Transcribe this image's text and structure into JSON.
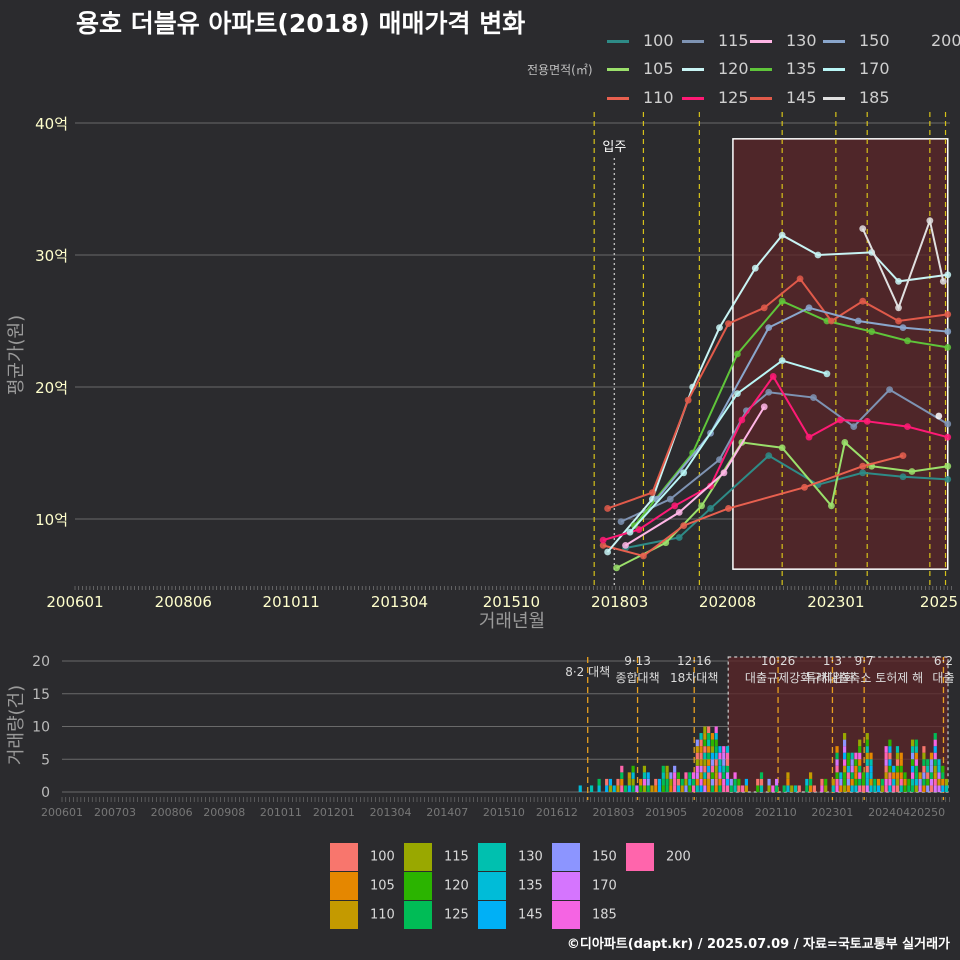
{
  "title": "용호 더블유 아파트(2018) 매매가격 변화",
  "legend_title": "전용면적(㎡)",
  "footer": "©디아파트(dapt.kr) / 2025.07.09 / 자료=국토교통부 실거래가",
  "chart_data": [
    {
      "type": "line",
      "ylabel": "평균가(원)",
      "xlabel": "거래년월",
      "x_ticks": [
        "200601",
        "200806",
        "201011",
        "201304",
        "201510",
        "201803",
        "202008",
        "202301",
        "2025"
      ],
      "y_ticks": [
        "10억",
        "20억",
        "30억",
        "40억"
      ],
      "ylim": [
        4.5,
        41
      ],
      "xlim": [
        "2006-01",
        "2025-07"
      ],
      "event_label": "입주",
      "series": [
        {
          "name": "100",
          "color": "#2e8b87",
          "values": [
            [
              2018.3,
              7.8
            ],
            [
              2019.5,
              8.6
            ],
            [
              2020.2,
              10.8
            ],
            [
              2021.5,
              14.8
            ],
            [
              2022.6,
              12.6
            ],
            [
              2023.6,
              13.5
            ],
            [
              2024.5,
              13.2
            ],
            [
              2025.5,
              13.0
            ]
          ]
        },
        {
          "name": "105",
          "color": "#9be06b",
          "values": [
            [
              2018.1,
              6.3
            ],
            [
              2019.2,
              8.2
            ],
            [
              2020.0,
              11.0
            ],
            [
              2020.9,
              15.8
            ],
            [
              2021.8,
              15.4
            ],
            [
              2022.9,
              11.0
            ],
            [
              2023.2,
              15.8
            ],
            [
              2023.8,
              14.0
            ],
            [
              2024.7,
              13.6
            ],
            [
              2025.5,
              14.0
            ]
          ]
        },
        {
          "name": "110",
          "color": "#e8604f",
          "values": [
            [
              2017.8,
              8.0
            ],
            [
              2018.7,
              7.2
            ],
            [
              2019.6,
              9.5
            ],
            [
              2020.6,
              10.8
            ],
            [
              2022.3,
              12.4
            ],
            [
              2023.6,
              14.0
            ],
            [
              2024.5,
              14.8
            ]
          ]
        },
        {
          "name": "115",
          "color": "#7e93b3",
          "values": [
            [
              2018.2,
              9.8
            ],
            [
              2019.3,
              11.5
            ],
            [
              2020.4,
              14.5
            ],
            [
              2021.0,
              18.2
            ],
            [
              2021.5,
              19.6
            ],
            [
              2022.5,
              19.2
            ],
            [
              2023.4,
              17.0
            ],
            [
              2024.2,
              19.8
            ],
            [
              2025.5,
              17.2
            ]
          ]
        },
        {
          "name": "120",
          "color": "#c8f4f4",
          "values": [
            [
              2017.9,
              7.5
            ],
            [
              2018.9,
              11.5
            ],
            [
              2019.8,
              20.0
            ],
            [
              2020.4,
              24.5
            ],
            [
              2021.2,
              29.0
            ],
            [
              2021.8,
              31.5
            ],
            [
              2022.6,
              30.0
            ],
            [
              2023.8,
              30.2
            ],
            [
              2024.4,
              28.0
            ],
            [
              2025.5,
              28.5
            ]
          ]
        },
        {
          "name": "125",
          "color": "#ff1a75",
          "values": [
            [
              2017.8,
              8.4
            ],
            [
              2018.6,
              9.2
            ],
            [
              2019.4,
              11.0
            ],
            [
              2020.2,
              12.5
            ],
            [
              2020.9,
              17.5
            ],
            [
              2021.6,
              20.8
            ],
            [
              2022.4,
              16.2
            ],
            [
              2023.1,
              17.5
            ],
            [
              2023.7,
              17.4
            ],
            [
              2024.6,
              17.0
            ],
            [
              2025.5,
              16.2
            ]
          ]
        },
        {
          "name": "130",
          "color": "#ffb6e6",
          "values": [
            [
              2018.3,
              8.0
            ],
            [
              2019.5,
              10.5
            ],
            [
              2020.5,
              13.5
            ],
            [
              2021.4,
              18.5
            ]
          ]
        },
        {
          "name": "135",
          "color": "#5fc53a",
          "values": [
            [
              2018.5,
              9.5
            ],
            [
              2019.8,
              15.0
            ],
            [
              2020.8,
              22.5
            ],
            [
              2021.8,
              26.5
            ],
            [
              2022.8,
              25.0
            ],
            [
              2023.8,
              24.2
            ],
            [
              2024.6,
              23.5
            ],
            [
              2025.5,
              23.0
            ]
          ]
        },
        {
          "name": "145",
          "color": "#e05a4a",
          "values": [
            [
              2017.9,
              10.8
            ],
            [
              2018.9,
              12.0
            ],
            [
              2019.7,
              19.0
            ],
            [
              2020.6,
              24.8
            ],
            [
              2021.4,
              26.0
            ],
            [
              2022.2,
              28.2
            ],
            [
              2022.9,
              25.0
            ],
            [
              2023.6,
              26.5
            ],
            [
              2024.4,
              25.0
            ],
            [
              2025.5,
              25.5
            ]
          ]
        },
        {
          "name": "150",
          "color": "#8aa6cc",
          "values": [
            [
              2019.0,
              11.5
            ],
            [
              2020.2,
              16.5
            ],
            [
              2021.5,
              24.5
            ],
            [
              2022.4,
              26.0
            ],
            [
              2023.5,
              25.0
            ],
            [
              2024.5,
              24.5
            ],
            [
              2025.5,
              24.2
            ]
          ]
        },
        {
          "name": "170",
          "color": "#b9f6f6",
          "values": [
            [
              2018.4,
              9.0
            ],
            [
              2019.6,
              13.5
            ],
            [
              2020.8,
              19.5
            ],
            [
              2021.8,
              22.0
            ],
            [
              2022.8,
              21.0
            ]
          ]
        },
        {
          "name": "185",
          "color": "#e0e0e0",
          "values": [
            [
              2023.6,
              32.0
            ],
            [
              2024.4,
              26.0
            ],
            [
              2025.1,
              32.6
            ],
            [
              2025.4,
              28.0
            ]
          ]
        },
        {
          "name": "200",
          "color": "#ffffff",
          "values": [
            [
              2025.3,
              17.8
            ]
          ]
        }
      ],
      "policy_lines": [
        2017.6,
        2018.7,
        2019.95,
        2021.8,
        2023.0,
        2023.7,
        2025.1,
        2025.45
      ],
      "highlight_range": [
        2020.7,
        2025.5,
        6.2,
        38.8
      ]
    },
    {
      "type": "bar",
      "ylabel": "거래량(건)",
      "x_ticks": [
        "200601",
        "200703",
        "200806",
        "200908",
        "201011",
        "201201",
        "201304",
        "201407",
        "201510",
        "201612",
        "201803",
        "201905",
        "202008",
        "202110",
        "202301",
        "202404",
        "20250"
      ],
      "y_ticks": [
        "0",
        "5",
        "10",
        "15",
        "20"
      ],
      "ylim": [
        0,
        21
      ],
      "policy_labels": [
        {
          "x": 2017.6,
          "lines": [
            "8·2 대책"
          ]
        },
        {
          "x": 2018.7,
          "lines": [
            "9·13",
            "종합대책"
          ]
        },
        {
          "x": 2019.95,
          "lines": [
            "12·16",
            "18차대책"
          ]
        },
        {
          "x": 2021.8,
          "lines": [
            "10·26",
            "대출규제강화"
          ]
        },
        {
          "x": 2023.0,
          "lines": [
            "1·3",
            "규제완화"
          ]
        },
        {
          "x": 2023.7,
          "lines": [
            "9·7",
            "특례대출축소 토허제 해"
          ]
        },
        {
          "x": 2025.45,
          "lines": [
            "6·2",
            "대출"
          ]
        }
      ],
      "legend": [
        {
          "name": "100",
          "color": "#f8766d"
        },
        {
          "name": "105",
          "color": "#e58700"
        },
        {
          "name": "110",
          "color": "#c49a00"
        },
        {
          "name": "115",
          "color": "#99a800"
        },
        {
          "name": "120",
          "color": "#2bb400"
        },
        {
          "name": "125",
          "color": "#00bc56"
        },
        {
          "name": "130",
          "color": "#00c0af"
        },
        {
          "name": "135",
          "color": "#00bcd8"
        },
        {
          "name": "145",
          "color": "#00b0f6"
        },
        {
          "name": "150",
          "color": "#8c95ff"
        },
        {
          "name": "170",
          "color": "#d575fe"
        },
        {
          "name": "185",
          "color": "#f564e3"
        },
        {
          "name": "200",
          "color": "#ff65ac"
        }
      ]
    }
  ]
}
